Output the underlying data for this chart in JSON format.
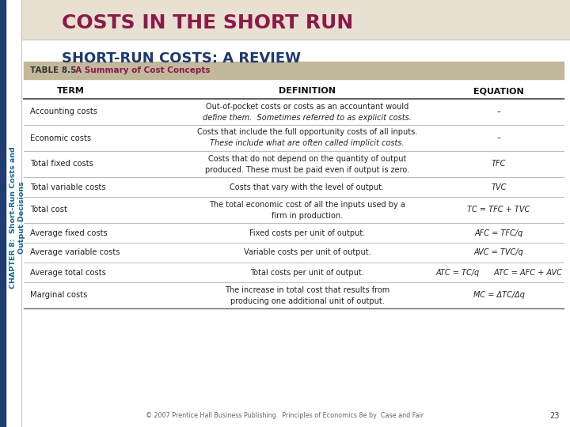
{
  "title_main": "COSTS IN THE SHORT RUN",
  "title_main_color": "#8B1A4A",
  "title_main_bg": "#E8E0D0",
  "title_sub": "SHORT-RUN COSTS: A REVIEW",
  "title_sub_color": "#1F3A6E",
  "side_label_line1": "CHAPTER 8:  Short-Run Costs and",
  "side_label_line2": "Output Decisions",
  "side_label_color": "#1A6B8C",
  "table_header_label": "TABLE 8.5",
  "table_header_label_color": "#333333",
  "table_header_title": "  A Summary of Cost Concepts",
  "table_header_title_color": "#8B1A4A",
  "table_header_bg": "#C2B89A",
  "col_headers": [
    "TERM",
    "DEFINITION",
    "EQUATION"
  ],
  "col_header_color": "#111111",
  "bg_color": "#FFFFFF",
  "rows": [
    {
      "term": "Accounting costs",
      "def1": "Out-of-pocket costs or costs as an accountant would",
      "def2": "define them.  Sometimes referred to as explicit costs.",
      "def2_italic": true,
      "equation": "–",
      "eq_italic": false
    },
    {
      "term": "Economic costs",
      "def1": "Costs that include the full opportunity costs of all inputs.",
      "def2": "These include what are often called implicit costs.",
      "def2_italic": true,
      "equation": "–",
      "eq_italic": false
    },
    {
      "term": "Total fixed costs",
      "def1": "Costs that do not depend on the quantity of output",
      "def2": "produced. These must be paid even if output is zero.",
      "def2_italic": false,
      "equation": "TFC",
      "eq_italic": true
    },
    {
      "term": "Total variable costs",
      "def1": "Costs that vary with the level of output.",
      "def2": "",
      "def2_italic": false,
      "equation": "TVC",
      "eq_italic": true
    },
    {
      "term": "Total cost",
      "def1": "The total economic cost of all the inputs used by a",
      "def2": "firm in production.",
      "def2_italic": false,
      "equation": "TC = TFC + TVC",
      "eq_italic": true
    },
    {
      "term": "Average fixed costs",
      "def1": "Fixed costs per unit of output.",
      "def2": "",
      "def2_italic": false,
      "equation": "AFC = TFC/q",
      "eq_italic": true
    },
    {
      "term": "Average variable costs",
      "def1": "Variable costs per unit of output.",
      "def2": "",
      "def2_italic": false,
      "equation": "AVC = TVC/q",
      "eq_italic": true
    },
    {
      "term": "Average total costs",
      "def1": "Total costs per unit of output.",
      "def2": "",
      "def2_italic": false,
      "equation": "ATC = TC/q      ATC = AFC + AVC",
      "eq_italic": true
    },
    {
      "term": "Marginal costs",
      "def1": "The increase in total cost that results from",
      "def2": "producing one additional unit of output.",
      "def2_italic": false,
      "equation": "MC = ΔTC/Δq",
      "eq_italic": true
    }
  ],
  "footer": "© 2007 Prentice Hall Business Publishing   Principles of Economics 8e by  Case and Fair",
  "footer_page": "23",
  "left_bar_color": "#1F3D72",
  "line_color_dark": "#666666",
  "line_color_light": "#BBBBBB"
}
